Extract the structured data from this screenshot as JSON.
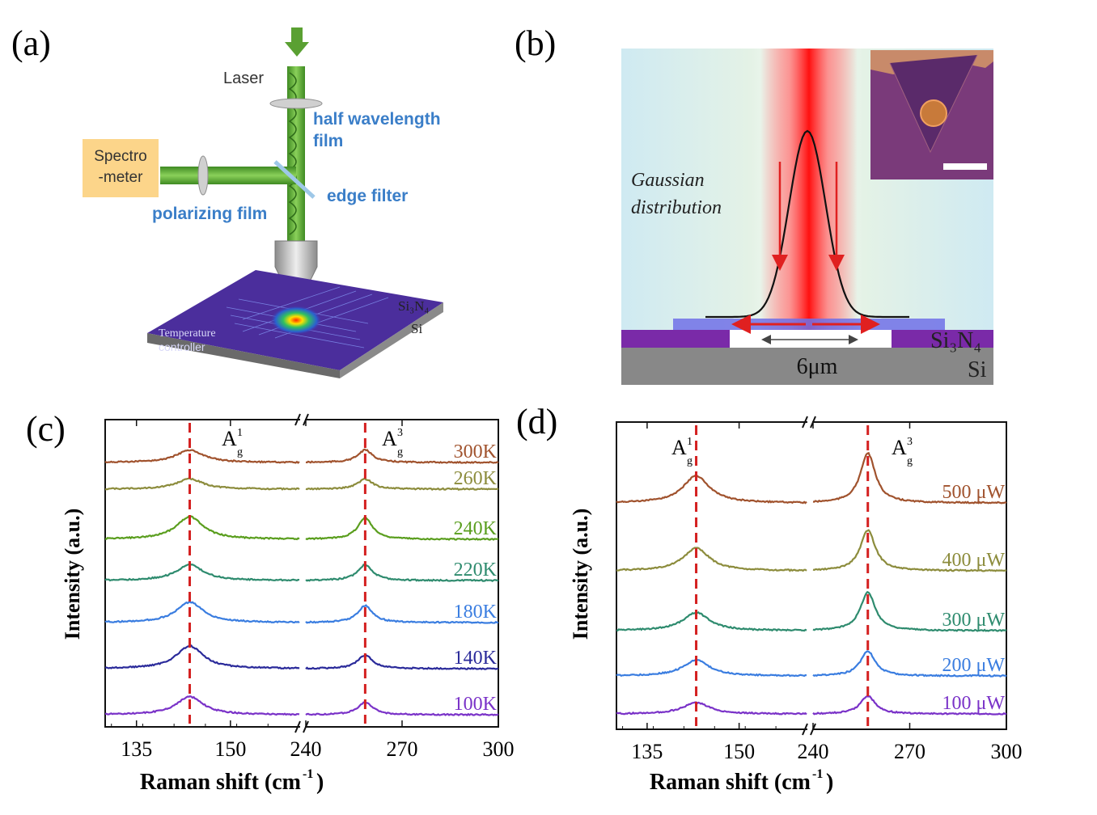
{
  "panels": {
    "a": {
      "label": "(a)",
      "laser": "Laser",
      "half_wave_1": "half wavelength",
      "half_wave_2": "film",
      "spectro_1": "Spectro",
      "spectro_2": "-meter",
      "edge_filter": "edge filter",
      "polarizing": "polarizing film",
      "si3n4": "Si₃N₄",
      "si": "Si",
      "temp_1": "Temperature",
      "temp_2": "controller",
      "colors": {
        "beam": "#5aa032",
        "spectro_box": "#fcd58a",
        "stage_top": "#4b2e9c",
        "blue_text": "#3a7ec8"
      }
    },
    "b": {
      "label": "(b)",
      "gauss_1": "Gaussian",
      "gauss_2": "distribution",
      "width": "6μm",
      "si3n4": "Si₃N₄",
      "si": "Si",
      "colors": {
        "laser": "#ff2020",
        "si3n4_layer": "#7a2aa8",
        "si_layer": "#888888",
        "arrow": "#e02020"
      }
    },
    "c": {
      "label": "(c)",
      "ylabel": "Intensity (a.u.)",
      "xlabel": "Raman shift (cm",
      "xlabel_sup": "-1",
      "xlabel_end": ")",
      "peak1": "A",
      "peak1_sub": "g",
      "peak1_sup": "1",
      "peak2": "A",
      "peak2_sub": "g",
      "peak2_sup": "3"
    },
    "d": {
      "label": "(d)",
      "ylabel": "Intensity (a.u.)",
      "xlabel": "Raman shift (cm",
      "xlabel_sup": "-1",
      "xlabel_end": ")",
      "peak1": "A",
      "peak1_sub": "g",
      "peak1_sup": "1",
      "peak2": "A",
      "peak2_sub": "g",
      "peak2_sup": "3"
    }
  },
  "chart_data": [
    {
      "type": "line",
      "panel": "c",
      "title": "",
      "xlabel": "Raman shift (cm-1)",
      "ylabel": "Intensity (a.u.)",
      "x_segments": [
        [
          130,
          161
        ],
        [
          240,
          300
        ]
      ],
      "x_ticks_left": [
        135,
        150
      ],
      "x_ticks_right": [
        240,
        270,
        300
      ],
      "peak_positions": [
        143.5,
        258.5
      ],
      "series": [
        {
          "name": "300K",
          "color": "#a0522d",
          "peak1_height": 0.55,
          "peak2_height": 0.55
        },
        {
          "name": "260K",
          "color": "#8c8c3c",
          "peak1_height": 0.45,
          "peak2_height": 0.45
        },
        {
          "name": "240K",
          "color": "#5a9e1e",
          "peak1_height": 1.0,
          "peak2_height": 0.95
        },
        {
          "name": "220K",
          "color": "#2e8b6e",
          "peak1_height": 0.7,
          "peak2_height": 0.7
        },
        {
          "name": "180K",
          "color": "#3a7de0",
          "peak1_height": 0.9,
          "peak2_height": 0.75
        },
        {
          "name": "140K",
          "color": "#2a2a9a",
          "peak1_height": 1.0,
          "peak2_height": 0.6
        },
        {
          "name": "100K",
          "color": "#7a32c8",
          "peak1_height": 0.8,
          "peak2_height": 0.55
        }
      ]
    },
    {
      "type": "line",
      "panel": "d",
      "title": "",
      "xlabel": "Raman shift (cm-1)",
      "ylabel": "Intensity (a.u.)",
      "x_segments": [
        [
          130,
          161
        ],
        [
          240,
          300
        ]
      ],
      "x_ticks_left": [
        135,
        150
      ],
      "x_ticks_right": [
        240,
        270,
        300
      ],
      "peak_positions": [
        143,
        257
      ],
      "series": [
        {
          "name": "500 μW",
          "color": "#a0522d",
          "peak1_height": 0.6,
          "peak2_height": 1.1
        },
        {
          "name": "400 μW",
          "color": "#8c8c3c",
          "peak1_height": 0.5,
          "peak2_height": 0.9
        },
        {
          "name": "300 μW",
          "color": "#2e8b6e",
          "peak1_height": 0.4,
          "peak2_height": 0.85
        },
        {
          "name": "200 μW",
          "color": "#3a7de0",
          "peak1_height": 0.35,
          "peak2_height": 0.55
        },
        {
          "name": "100 μW",
          "color": "#7a32c8",
          "peak1_height": 0.25,
          "peak2_height": 0.4
        }
      ]
    }
  ]
}
